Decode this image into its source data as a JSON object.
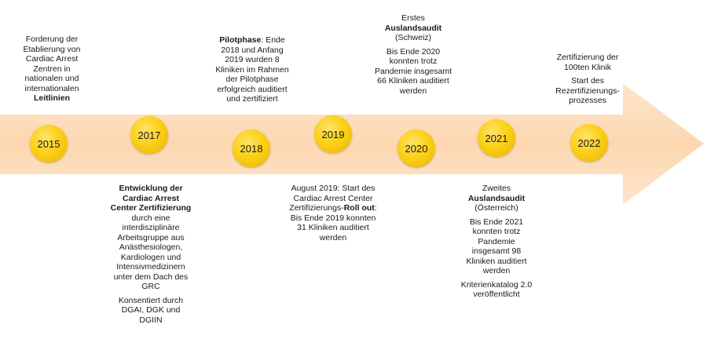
{
  "colors": {
    "arrow": "#fde3c7",
    "node": "#fcd018"
  },
  "years": [
    "2015",
    "2017",
    "2018",
    "2019",
    "2020",
    "2021",
    "2022"
  ],
  "milestones": {
    "y2015": {
      "pre": "Forderung der Etablierung von Cardiac Arrest Zentren in nationalen und internationalen",
      "bold": "Leitlinien"
    },
    "y2017": {
      "bold": "Entwicklung der Cardiac Arrest Center Zertifizierung",
      "rest": "durch eine interdisziplinäre Arbeitsgruppe aus Anästhesiologen, Kardiologen und Intensivmedizinern unter dem Dach des GRC",
      "note": "Konsentiert durch DGAI, DGK und DGIIN"
    },
    "y2018": {
      "bold": "Pilotphase",
      "rest": ": Ende 2018 und Anfang 2019 wurden 8 Kliniken im Rahmen der Pilotphase erfolgreich auditiert und zertifiziert"
    },
    "y2019": {
      "pre": "August 2019: Start des Cardiac Arrest Center Zertifizierungs-",
      "bold": "Roll out",
      "rest": ": Bis Ende 2019 konnten 31 Kliniken auditiert werden"
    },
    "y2020": {
      "pre": "Erstes",
      "bold": "Auslandsaudit",
      "paren": "(Schweiz)",
      "rest": "Bis Ende 2020 konnten trotz Pandemie insgesamt 66 Kliniken auditiert werden"
    },
    "y2021": {
      "pre": "Zweites",
      "bold": "Auslandsaudit",
      "paren": "(Österreich)",
      "rest": "Bis Ende 2021 konnten trotz Pandemie insgesamt 98 Kliniken auditiert werden",
      "note": "Kriterienkatalog 2.0 veröffentlicht"
    },
    "y2022": {
      "line1": "Zertifizierung der 100ten Klinik",
      "line2": "Start des Rezertifizierungs-prozesses"
    }
  }
}
